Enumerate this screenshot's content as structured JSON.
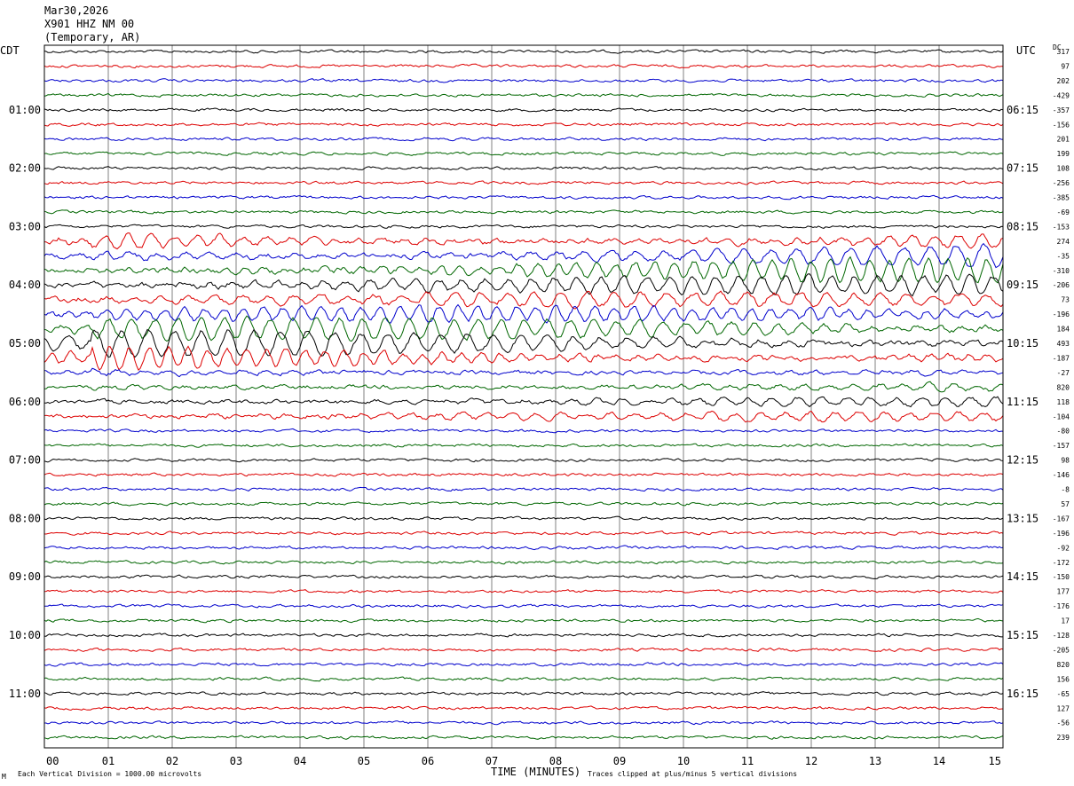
{
  "header": {
    "date": "Mar30,2026",
    "station": "X901 HHZ NM 00",
    "location": "(Temporary, AR)"
  },
  "left_zone": "CDT",
  "right_zone": "UTC",
  "dc_label": "DC",
  "footer": {
    "xlabel": "TIME (MINUTES)",
    "scale_note": "Each Vertical Division = 1000.00 microvolts",
    "clip_note": "Traces clipped at plus/minus 5 vertical divisions",
    "mark": "M"
  },
  "colors": {
    "trace_cycle": [
      "#000000",
      "#dd0000",
      "#0000cc",
      "#006600"
    ],
    "grid": "#808080",
    "frame": "#000000"
  },
  "chart_data": {
    "type": "line",
    "xlabel": "TIME (MINUTES)",
    "x_ticks": [
      "00",
      "01",
      "02",
      "03",
      "04",
      "05",
      "06",
      "07",
      "08",
      "09",
      "10",
      "11",
      "12",
      "13",
      "14",
      "15"
    ],
    "xlim": [
      0,
      15
    ],
    "trace_count": 48,
    "traces_per_hour": 4,
    "left_time_labels": [
      "01:00",
      "02:00",
      "03:00",
      "04:00",
      "05:00",
      "06:00",
      "07:00",
      "08:00",
      "09:00",
      "10:00",
      "11:00"
    ],
    "right_time_labels": [
      "06:15",
      "07:15",
      "08:15",
      "09:15",
      "10:15",
      "11:15",
      "12:15",
      "13:15",
      "14:15",
      "15:15",
      "16:15"
    ],
    "dc_offsets": [
      "317",
      "97",
      "202",
      "-429",
      "-357",
      "-156",
      "201",
      "199",
      "108",
      "-256",
      "-385",
      "-69",
      "-153",
      "274",
      "-35",
      "-310",
      "-206",
      "73",
      "-196",
      "184",
      "493",
      "-187",
      "-27",
      "820",
      "118",
      "-104",
      "-80",
      "-157",
      "98",
      "-146",
      "-8",
      "57",
      "-167",
      "-196",
      "-92",
      "-172",
      "-150",
      "177",
      "-176",
      "17",
      "-128",
      "-205",
      "820",
      "156",
      "-65",
      "127",
      "-56",
      "239"
    ],
    "event_traces_large": [
      13,
      14,
      15,
      16,
      17,
      18,
      19,
      20,
      21
    ],
    "event_traces_moderate": [
      22,
      23,
      24,
      25
    ],
    "scale_microvolts_per_division": 1000,
    "clip_divisions": 5
  }
}
